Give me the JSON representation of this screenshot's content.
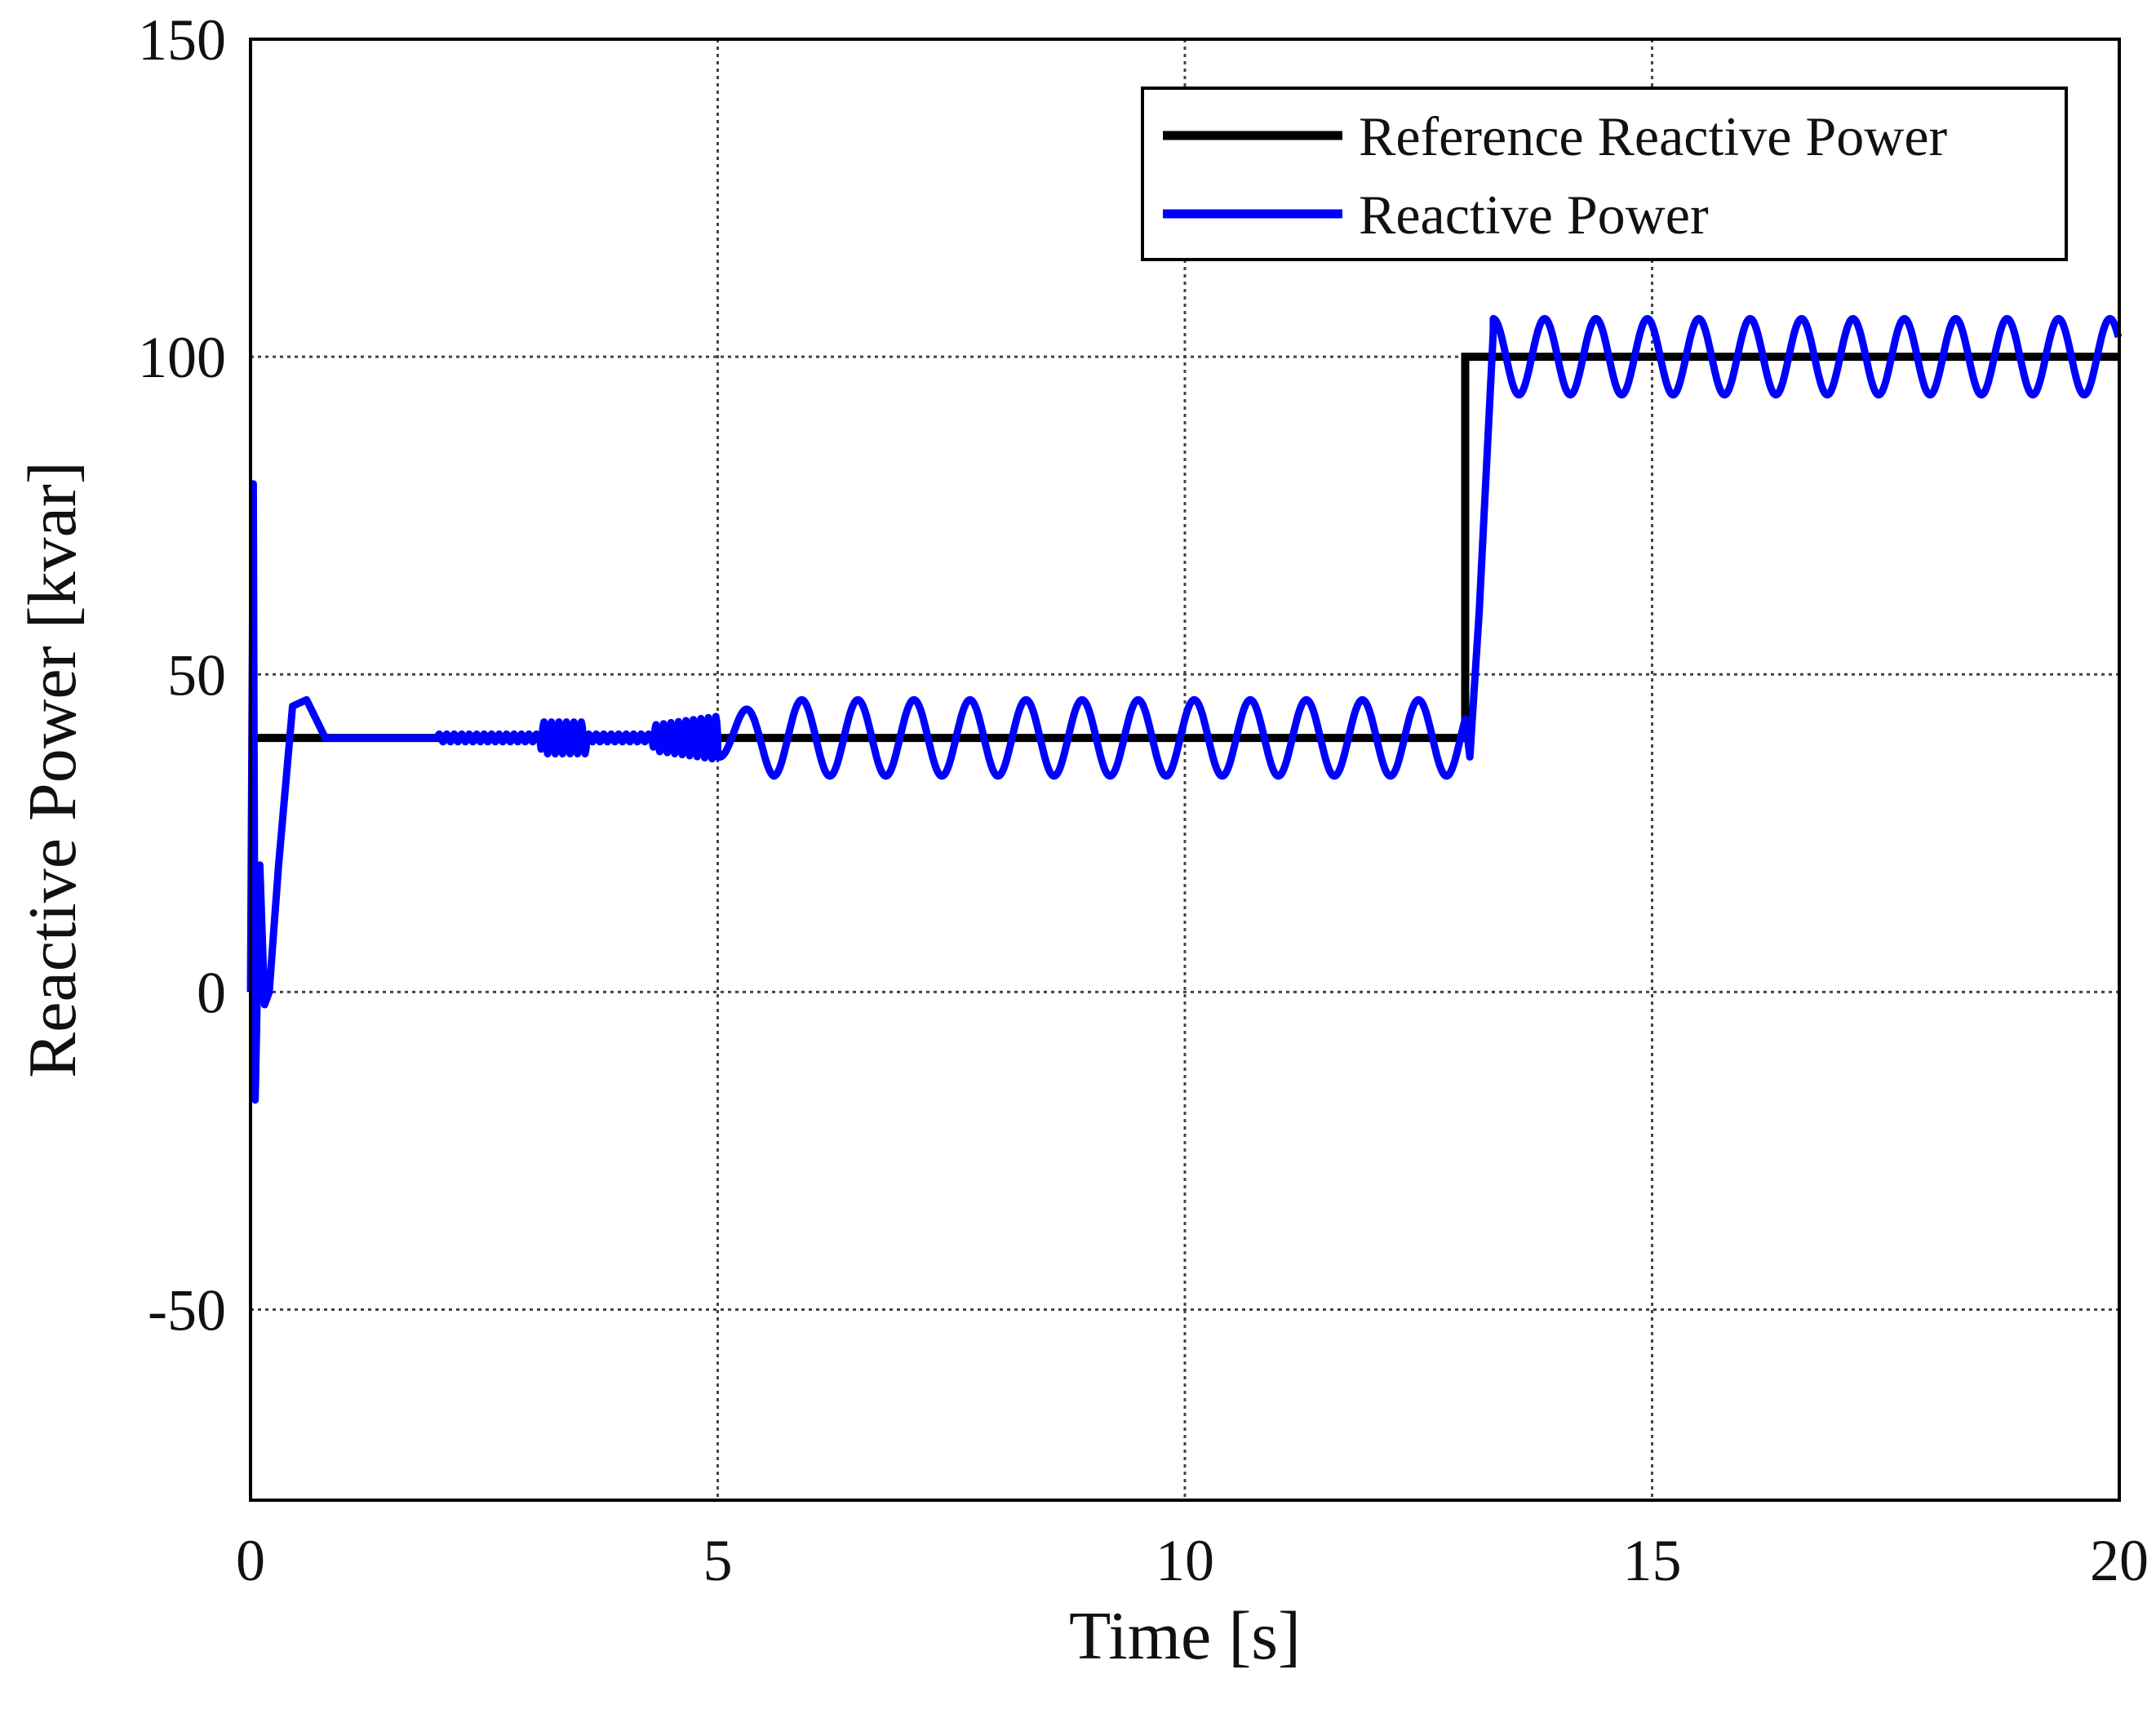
{
  "chart_data": {
    "type": "line",
    "title": "",
    "xlabel": "Time [s]",
    "ylabel": "Reactive Power [kvar]",
    "xlim": [
      0,
      20
    ],
    "ylim": [
      -80,
      150
    ],
    "xticks": [
      0,
      5,
      10,
      15,
      20
    ],
    "yticks": [
      -50,
      0,
      50,
      100,
      150
    ],
    "xtick_labels": [
      "0",
      "5",
      "10",
      "15",
      "20"
    ],
    "ytick_labels": [
      "-50",
      "0",
      "50",
      "100",
      "150"
    ],
    "grid": true,
    "legend_position": "top-right",
    "series": [
      {
        "name": "Reference Reactive Power",
        "color": "#000000",
        "x": [
          0,
          13,
          13,
          20
        ],
        "y": [
          40,
          40,
          100,
          100
        ]
      },
      {
        "name": "Reactive Power",
        "color": "#0000ff",
        "description_points": {
          "x": [
            0,
            0.03,
            0.05,
            0.1,
            0.15,
            0.2,
            0.3,
            0.45,
            0.6,
            0.8,
            1.0,
            2.0
          ],
          "y": [
            0,
            80,
            -17,
            20,
            -2,
            0,
            20,
            45,
            46,
            40,
            40,
            40
          ]
        },
        "oscillation": {
          "segment1": {
            "start": 5.0,
            "end": 13.0,
            "center": 40,
            "amplitude": 6,
            "period": 0.6
          },
          "segment2": {
            "start": 13.3,
            "end": 20.0,
            "center": 100,
            "amplitude": 6,
            "period": 0.55
          }
        }
      }
    ]
  }
}
